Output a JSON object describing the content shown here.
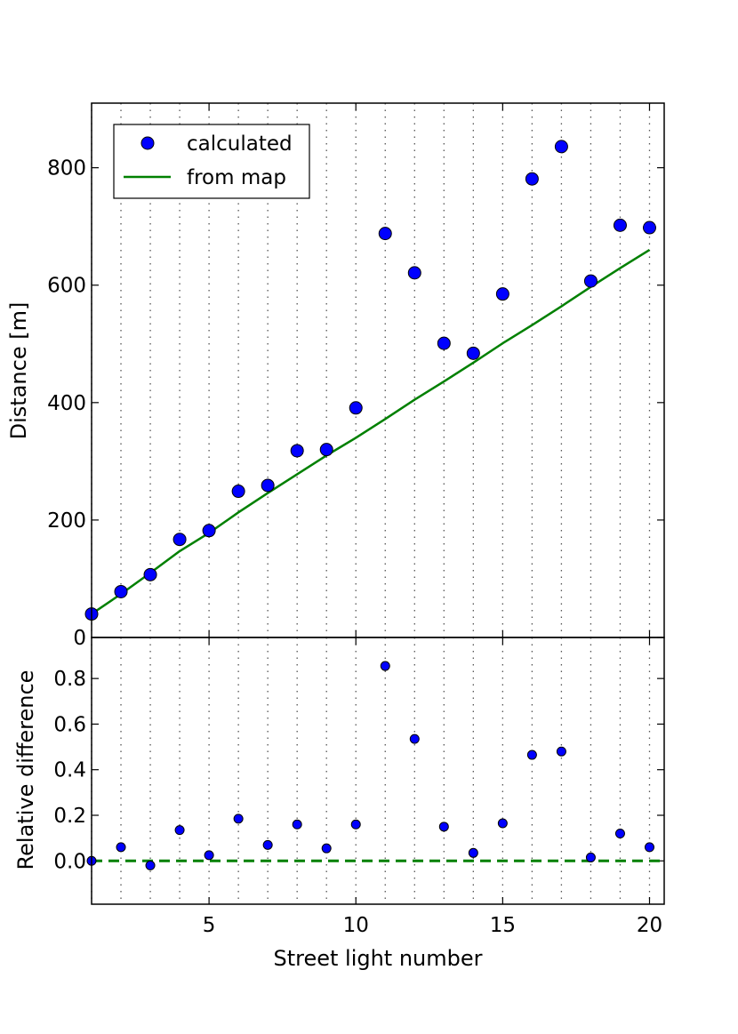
{
  "chart_data": [
    {
      "type": "scatter",
      "panel": "top",
      "xlim": [
        1,
        20.5
      ],
      "ylim": [
        0,
        910
      ],
      "xlabel": "",
      "ylabel": "Distance [m]",
      "yticks": [
        0,
        200,
        400,
        600,
        800
      ],
      "ytick_labels": [
        "0",
        "200",
        "400",
        "600",
        "800"
      ],
      "grid": "vertical dotted at x = 1..20",
      "legend": {
        "placement": "top-left",
        "entries": [
          "calculated",
          "from map"
        ]
      },
      "series": [
        {
          "name": "calculated",
          "kind": "scatter",
          "color": "#0000ff",
          "x": [
            1,
            2,
            3,
            4,
            5,
            6,
            7,
            8,
            9,
            10,
            11,
            12,
            13,
            14,
            15,
            16,
            17,
            18,
            19,
            20
          ],
          "y": [
            40,
            78,
            107,
            167,
            182,
            249,
            259,
            318,
            320,
            391,
            688,
            621,
            501,
            484,
            585,
            781,
            836,
            607,
            702,
            698
          ]
        },
        {
          "name": "from map",
          "kind": "line",
          "color": "#008000",
          "x": [
            1,
            2,
            3,
            4,
            5,
            6,
            7,
            8,
            9,
            10,
            11,
            12,
            13,
            14,
            15,
            16,
            17,
            18,
            19,
            20
          ],
          "y": [
            40,
            74,
            110,
            147,
            178,
            213,
            246,
            278,
            310,
            340,
            372,
            405,
            436,
            468,
            501,
            532,
            564,
            597,
            629,
            660
          ]
        }
      ]
    },
    {
      "type": "scatter",
      "panel": "bottom",
      "xlim": [
        1,
        20.5
      ],
      "ylim": [
        -0.19,
        0.98
      ],
      "xlabel": "Street light number",
      "ylabel": "Relative difference",
      "xticks": [
        5,
        10,
        15,
        20
      ],
      "xtick_labels": [
        "5",
        "10",
        "15",
        "20"
      ],
      "yticks": [
        0.0,
        0.2,
        0.4,
        0.6,
        0.8
      ],
      "ytick_labels": [
        "0.0",
        "0.2",
        "0.4",
        "0.6",
        "0.8"
      ],
      "grid": "vertical dotted at x = 1..20",
      "series": [
        {
          "kind": "scatter",
          "color": "#0000ff",
          "x": [
            1,
            2,
            3,
            4,
            5,
            6,
            7,
            8,
            9,
            10,
            11,
            12,
            13,
            14,
            15,
            16,
            17,
            18,
            19,
            20
          ],
          "y": [
            0.0,
            0.06,
            -0.02,
            0.135,
            0.025,
            0.185,
            0.07,
            0.16,
            0.055,
            0.16,
            0.855,
            0.535,
            0.15,
            0.035,
            0.165,
            0.465,
            0.48,
            0.015,
            0.12,
            0.06
          ]
        },
        {
          "kind": "reference-line",
          "style": "dashed",
          "color": "#008000",
          "y": 0.0
        }
      ]
    }
  ]
}
